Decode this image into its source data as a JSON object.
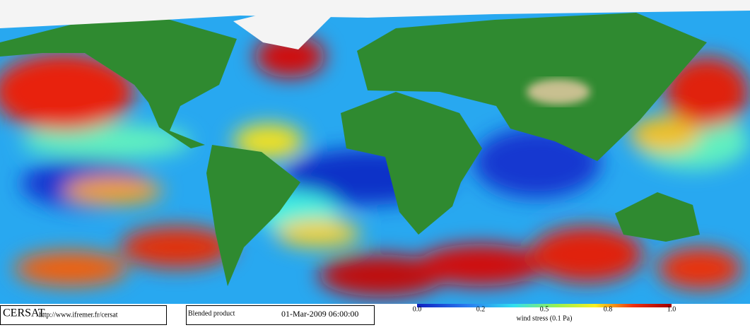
{
  "branding": {
    "name": "CERSAT",
    "url": "http://www.ifremer.fr/cersat"
  },
  "product": {
    "name": "Blended product",
    "datetime": "01-Mar-2009 06:00:00"
  },
  "colorbar": {
    "ticks": [
      "0.0",
      "0.2",
      "0.5",
      "0.8",
      "1.0"
    ],
    "label": "wind stress (0.1 Pa)"
  }
}
